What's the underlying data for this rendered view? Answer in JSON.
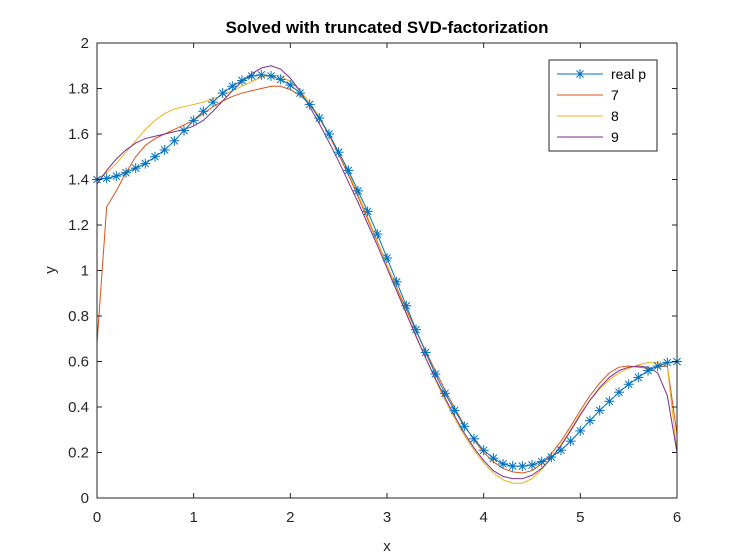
{
  "chart_data": {
    "type": "line",
    "title": "Solved with truncated SVD-factorization",
    "xlabel": "x",
    "ylabel": "y",
    "xlim": [
      0,
      6
    ],
    "ylim": [
      0,
      2
    ],
    "xticks": [
      0,
      1,
      2,
      3,
      4,
      5,
      6
    ],
    "yticks": [
      0,
      0.2,
      0.4,
      0.6,
      0.8,
      1,
      1.2,
      1.4,
      1.6,
      1.8,
      2
    ],
    "grid": false,
    "legend_position": "top-right",
    "series": [
      {
        "name": "real p",
        "color": "#0072BD",
        "marker": "asterisk",
        "x": [
          0,
          0.1,
          0.2,
          0.3,
          0.4,
          0.5,
          0.6,
          0.7,
          0.8,
          0.9,
          1.0,
          1.1,
          1.2,
          1.3,
          1.4,
          1.5,
          1.6,
          1.7,
          1.8,
          1.9,
          2.0,
          2.1,
          2.2,
          2.3,
          2.4,
          2.5,
          2.6,
          2.7,
          2.8,
          2.9,
          3.0,
          3.1,
          3.2,
          3.3,
          3.4,
          3.5,
          3.6,
          3.7,
          3.8,
          3.9,
          4.0,
          4.1,
          4.2,
          4.3,
          4.4,
          4.5,
          4.6,
          4.7,
          4.8,
          4.9,
          5.0,
          5.1,
          5.2,
          5.3,
          5.4,
          5.5,
          5.6,
          5.7,
          5.8,
          5.9,
          6.0
        ],
        "values": [
          1.4,
          1.405,
          1.415,
          1.43,
          1.45,
          1.47,
          1.5,
          1.53,
          1.57,
          1.615,
          1.66,
          1.7,
          1.74,
          1.78,
          1.81,
          1.835,
          1.855,
          1.86,
          1.855,
          1.84,
          1.815,
          1.78,
          1.73,
          1.67,
          1.6,
          1.52,
          1.44,
          1.35,
          1.26,
          1.16,
          1.055,
          0.95,
          0.845,
          0.74,
          0.64,
          0.545,
          0.46,
          0.385,
          0.315,
          0.26,
          0.21,
          0.175,
          0.15,
          0.14,
          0.14,
          0.145,
          0.16,
          0.18,
          0.21,
          0.25,
          0.295,
          0.34,
          0.385,
          0.425,
          0.465,
          0.5,
          0.53,
          0.56,
          0.58,
          0.595,
          0.6
        ]
      },
      {
        "name": "7",
        "color": "#D95319",
        "x": [
          0,
          0.1,
          0.2,
          0.3,
          0.4,
          0.5,
          0.6,
          0.7,
          0.8,
          0.9,
          1.0,
          1.1,
          1.2,
          1.3,
          1.4,
          1.5,
          1.6,
          1.7,
          1.8,
          1.9,
          2.0,
          2.1,
          2.2,
          2.3,
          2.4,
          2.5,
          2.6,
          2.7,
          2.8,
          2.9,
          3.0,
          3.1,
          3.2,
          3.3,
          3.4,
          3.5,
          3.6,
          3.7,
          3.8,
          3.9,
          4.0,
          4.1,
          4.2,
          4.3,
          4.4,
          4.5,
          4.6,
          4.7,
          4.8,
          4.9,
          5.0,
          5.1,
          5.2,
          5.3,
          5.4,
          5.5,
          5.6,
          5.7,
          5.8,
          5.9,
          6.0
        ],
        "values": [
          0.68,
          1.28,
          1.35,
          1.43,
          1.5,
          1.55,
          1.58,
          1.6,
          1.62,
          1.64,
          1.66,
          1.69,
          1.72,
          1.745,
          1.765,
          1.78,
          1.79,
          1.8,
          1.81,
          1.81,
          1.795,
          1.77,
          1.73,
          1.67,
          1.595,
          1.51,
          1.42,
          1.325,
          1.225,
          1.125,
          1.025,
          0.925,
          0.83,
          0.735,
          0.645,
          0.56,
          0.475,
          0.395,
          0.32,
          0.255,
          0.2,
          0.16,
          0.13,
          0.115,
          0.11,
          0.12,
          0.15,
          0.195,
          0.25,
          0.315,
          0.385,
          0.45,
          0.505,
          0.55,
          0.575,
          0.58,
          0.575,
          0.57,
          0.575,
          0.58,
          0.28
        ]
      },
      {
        "name": "8",
        "color": "#EDB120",
        "x": [
          0,
          0.1,
          0.2,
          0.3,
          0.4,
          0.5,
          0.6,
          0.7,
          0.8,
          0.9,
          1.0,
          1.1,
          1.2,
          1.3,
          1.4,
          1.5,
          1.6,
          1.7,
          1.8,
          1.9,
          2.0,
          2.1,
          2.2,
          2.3,
          2.4,
          2.5,
          2.6,
          2.7,
          2.8,
          2.9,
          3.0,
          3.1,
          3.2,
          3.3,
          3.4,
          3.5,
          3.6,
          3.7,
          3.8,
          3.9,
          4.0,
          4.1,
          4.2,
          4.3,
          4.4,
          4.5,
          4.6,
          4.7,
          4.8,
          4.9,
          5.0,
          5.1,
          5.2,
          5.3,
          5.4,
          5.5,
          5.6,
          5.7,
          5.8,
          5.9,
          6.0
        ],
        "values": [
          1.4,
          1.43,
          1.47,
          1.52,
          1.57,
          1.62,
          1.66,
          1.69,
          1.71,
          1.72,
          1.73,
          1.74,
          1.755,
          1.77,
          1.79,
          1.81,
          1.83,
          1.85,
          1.86,
          1.855,
          1.83,
          1.79,
          1.74,
          1.675,
          1.6,
          1.52,
          1.43,
          1.335,
          1.235,
          1.13,
          1.025,
          0.92,
          0.815,
          0.715,
          0.615,
          0.52,
          0.43,
          0.35,
          0.275,
          0.21,
          0.155,
          0.11,
          0.08,
          0.065,
          0.065,
          0.085,
          0.125,
          0.175,
          0.235,
          0.3,
          0.37,
          0.43,
          0.48,
          0.52,
          0.55,
          0.57,
          0.585,
          0.595,
          0.595,
          0.58,
          0.2
        ]
      },
      {
        "name": "9",
        "color": "#7E2F8E",
        "x": [
          0,
          0.1,
          0.2,
          0.3,
          0.4,
          0.5,
          0.6,
          0.7,
          0.8,
          0.9,
          1.0,
          1.1,
          1.2,
          1.3,
          1.4,
          1.5,
          1.6,
          1.7,
          1.8,
          1.9,
          2.0,
          2.1,
          2.2,
          2.3,
          2.4,
          2.5,
          2.6,
          2.7,
          2.8,
          2.9,
          3.0,
          3.1,
          3.2,
          3.3,
          3.4,
          3.5,
          3.6,
          3.7,
          3.8,
          3.9,
          4.0,
          4.1,
          4.2,
          4.3,
          4.4,
          4.5,
          4.6,
          4.7,
          4.8,
          4.9,
          5.0,
          5.1,
          5.2,
          5.3,
          5.4,
          5.5,
          5.6,
          5.7,
          5.8,
          5.9,
          6.0
        ],
        "values": [
          1.38,
          1.44,
          1.49,
          1.53,
          1.56,
          1.58,
          1.59,
          1.6,
          1.61,
          1.62,
          1.635,
          1.66,
          1.7,
          1.745,
          1.79,
          1.83,
          1.865,
          1.89,
          1.9,
          1.885,
          1.845,
          1.79,
          1.72,
          1.645,
          1.565,
          1.48,
          1.39,
          1.3,
          1.205,
          1.11,
          1.01,
          0.91,
          0.81,
          0.71,
          0.615,
          0.525,
          0.44,
          0.36,
          0.285,
          0.22,
          0.165,
          0.12,
          0.095,
          0.085,
          0.085,
          0.1,
          0.13,
          0.175,
          0.23,
          0.295,
          0.365,
          0.43,
          0.485,
          0.53,
          0.56,
          0.575,
          0.58,
          0.575,
          0.55,
          0.45,
          0.2
        ]
      }
    ]
  }
}
